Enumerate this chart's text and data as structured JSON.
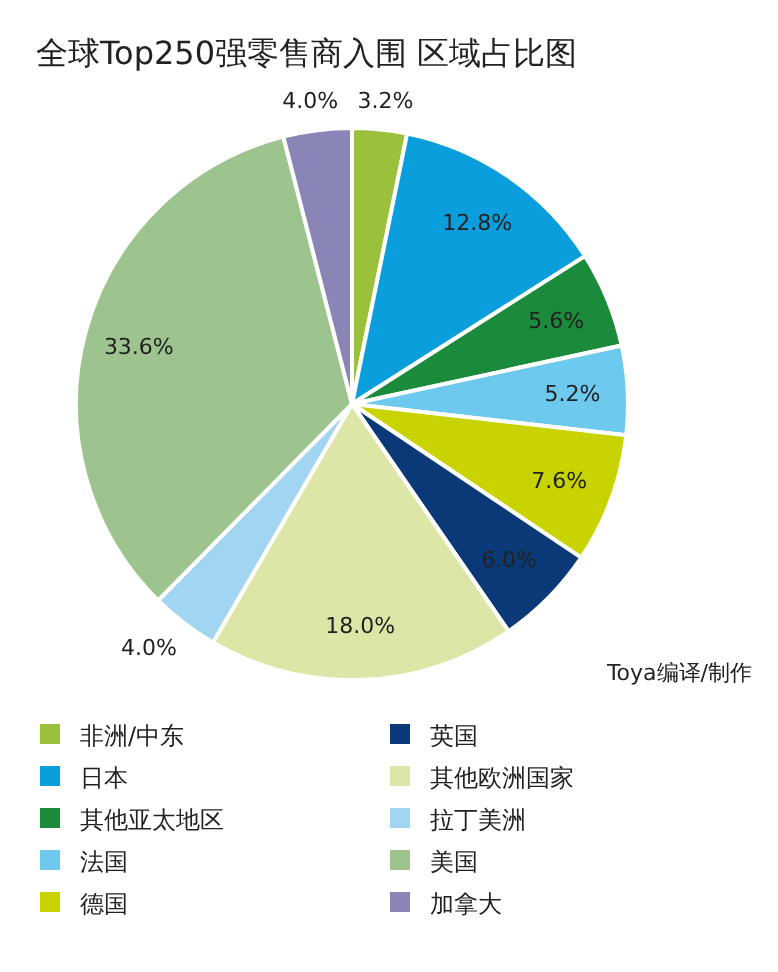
{
  "chart_data": {
    "type": "pie",
    "title": "全球Top250强零售商入围 区域占比图",
    "categories": [
      "非洲/中东",
      "日本",
      "其他亚太地区",
      "法国",
      "德国",
      "英国",
      "其他欧洲国家",
      "拉丁美洲",
      "美国",
      "加拿大"
    ],
    "values": [
      3.2,
      12.8,
      5.6,
      5.2,
      7.6,
      6.0,
      18.0,
      4.0,
      33.6,
      4.0
    ],
    "value_labels": [
      "3.2%",
      "12.8%",
      "5.6%",
      "5.2%",
      "7.6%",
      "6.0%",
      "18.0%",
      "4.0%",
      "33.6%",
      "4.0%"
    ],
    "colors": [
      "#9bc13c",
      "#0a9fdc",
      "#1b8a3b",
      "#6ec9ee",
      "#c9d300",
      "#0b3978",
      "#dde6a6",
      "#a2d5f1",
      "#9dc38e",
      "#8985b7"
    ],
    "annotations": [
      "Toya编译/制作"
    ],
    "legend": "bottom"
  }
}
